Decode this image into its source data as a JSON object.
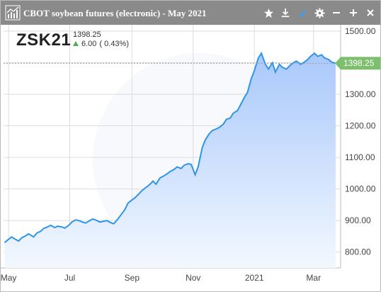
{
  "window": {
    "title": "CBOT soybean futures (electronic) - May 2021"
  },
  "toolbar": {
    "icons": [
      "star-icon",
      "download-icon",
      "pencil-icon",
      "gear-icon",
      "minimize-icon",
      "add-icon",
      "close-icon"
    ]
  },
  "quote": {
    "symbol": "ZSK21",
    "last": "1398.25",
    "change": "6.00",
    "change_pct": "( 0.43%)",
    "current_tag": "1398.25"
  },
  "colors": {
    "titlebar": "#8a8a8a",
    "line": "#2f95e8",
    "fill_top": "#a9c8fb",
    "fill_bottom": "#f3f8ff",
    "price_tag": "#7dbf6e",
    "up": "#4caf50",
    "grid": "#dcdcdc"
  },
  "chart_data": {
    "type": "area",
    "ylim": [
      750,
      1520
    ],
    "yticks": [
      800,
      900,
      1000,
      1100,
      1200,
      1300,
      1400,
      1500
    ],
    "ytick_labels": [
      "800.00",
      "900.00",
      "1000.00",
      "1100.00",
      "1200.00",
      "1300.00",
      "1400.00",
      "1500.00"
    ],
    "xtick_labels": [
      "May",
      "Jul",
      "Sep",
      "Nov",
      "2021",
      "Mar"
    ],
    "xtick_dates": [
      "2020-05-01",
      "2020-07-01",
      "2020-09-01",
      "2020-11-01",
      "2021-01-01",
      "2021-03-01"
    ],
    "xlim": [
      "2020-04-26",
      "2021-03-28"
    ],
    "current_value": 1398.25,
    "grid": true,
    "series": [
      {
        "x": [
          "2020-04-27",
          "2020-04-30",
          "2020-05-04",
          "2020-05-07",
          "2020-05-11",
          "2020-05-14",
          "2020-05-18",
          "2020-05-21",
          "2020-05-26",
          "2020-05-29",
          "2020-06-02",
          "2020-06-05",
          "2020-06-09",
          "2020-06-12",
          "2020-06-16",
          "2020-06-19",
          "2020-06-23",
          "2020-06-26",
          "2020-06-30",
          "2020-07-03",
          "2020-07-07",
          "2020-07-10",
          "2020-07-14",
          "2020-07-17",
          "2020-07-21",
          "2020-07-24",
          "2020-07-28",
          "2020-07-31",
          "2020-08-04",
          "2020-08-07",
          "2020-08-11",
          "2020-08-14",
          "2020-08-18",
          "2020-08-21",
          "2020-08-25",
          "2020-08-28",
          "2020-09-01",
          "2020-09-04",
          "2020-09-08",
          "2020-09-11",
          "2020-09-15",
          "2020-09-18",
          "2020-09-22",
          "2020-09-25",
          "2020-09-29",
          "2020-10-02",
          "2020-10-06",
          "2020-10-09",
          "2020-10-13",
          "2020-10-16",
          "2020-10-20",
          "2020-10-23",
          "2020-10-27",
          "2020-10-30",
          "2020-11-03",
          "2020-11-06",
          "2020-11-10",
          "2020-11-13",
          "2020-11-17",
          "2020-11-20",
          "2020-11-24",
          "2020-11-27",
          "2020-12-01",
          "2020-12-04",
          "2020-12-08",
          "2020-12-11",
          "2020-12-15",
          "2020-12-18",
          "2020-12-22",
          "2020-12-25",
          "2020-12-29",
          "2021-01-01",
          "2021-01-05",
          "2021-01-08",
          "2021-01-12",
          "2021-01-15",
          "2021-01-19",
          "2021-01-22",
          "2021-01-26",
          "2021-01-29",
          "2021-02-02",
          "2021-02-05",
          "2021-02-09",
          "2021-02-12",
          "2021-02-16",
          "2021-02-19",
          "2021-02-23",
          "2021-02-26",
          "2021-03-02",
          "2021-03-05",
          "2021-03-09",
          "2021-03-12",
          "2021-03-16",
          "2021-03-19",
          "2021-03-23"
        ],
        "y": [
          830,
          838,
          848,
          842,
          835,
          845,
          852,
          858,
          848,
          860,
          866,
          875,
          880,
          885,
          878,
          882,
          880,
          876,
          885,
          895,
          902,
          900,
          895,
          892,
          900,
          905,
          900,
          895,
          898,
          900,
          893,
          890,
          905,
          918,
          935,
          955,
          965,
          972,
          985,
          995,
          1005,
          1012,
          1025,
          1015,
          1035,
          1040,
          1048,
          1055,
          1062,
          1070,
          1065,
          1075,
          1080,
          1078,
          1045,
          1070,
          1130,
          1155,
          1175,
          1185,
          1190,
          1195,
          1205,
          1220,
          1225,
          1240,
          1248,
          1265,
          1290,
          1305,
          1350,
          1375,
          1415,
          1430,
          1395,
          1380,
          1400,
          1370,
          1395,
          1385,
          1380,
          1390,
          1400,
          1405,
          1395,
          1400,
          1410,
          1420,
          1430,
          1420,
          1425,
          1415,
          1410,
          1402,
          1398
        ]
      }
    ]
  }
}
